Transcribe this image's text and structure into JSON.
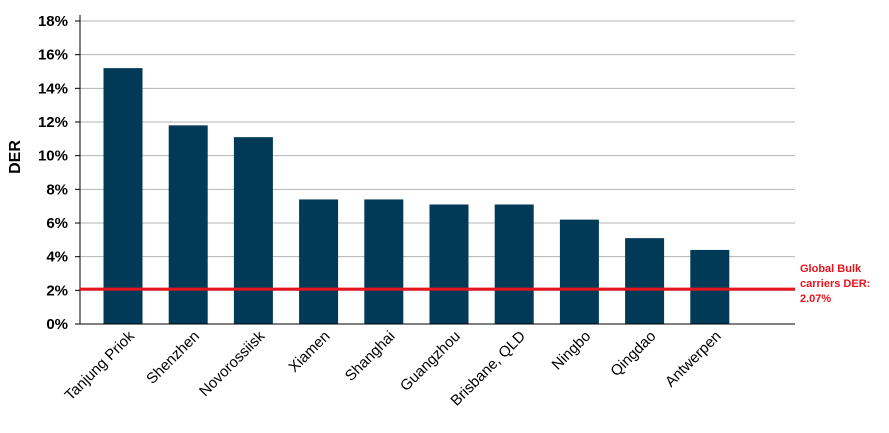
{
  "chart_data": {
    "type": "bar",
    "ylabel": "DER",
    "xlabel": "",
    "ylim": [
      0,
      18
    ],
    "ytick_step": 2,
    "ytick_labels": [
      "0%",
      "2%",
      "4%",
      "6%",
      "8%",
      "10%",
      "12%",
      "14%",
      "16%",
      "18%"
    ],
    "categories": [
      "Tanjung Priok",
      "Shenzhen",
      "Novorossiisk",
      "Xiamen",
      "Shanghai",
      "Guangzhou",
      "Brisbane, QLD",
      "Ningbo",
      "Qingdao",
      "Antwerpen"
    ],
    "values": [
      15.2,
      11.8,
      11.1,
      7.4,
      7.4,
      7.1,
      7.1,
      6.2,
      5.1,
      4.4
    ],
    "bar_color": "#003a57",
    "grid": true,
    "reference_line": {
      "value": 2.07,
      "color": "#e8141d",
      "label_lines": [
        "Global Bulk",
        "carriers DER:",
        "2.07%"
      ]
    }
  }
}
